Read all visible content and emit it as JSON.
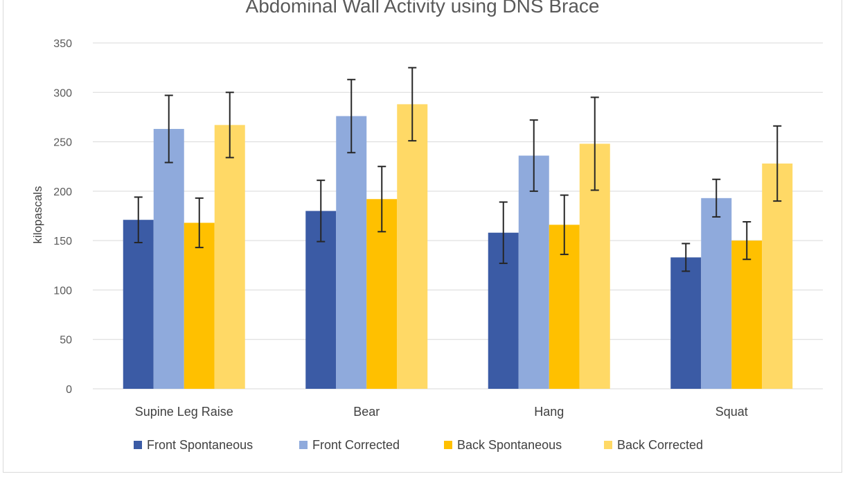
{
  "chart_data": {
    "type": "bar",
    "title": "Abdominal Wall Activity using DNS Brace",
    "xlabel": "",
    "ylabel": "kilopascals",
    "ylim": [
      0,
      350
    ],
    "yticks": [
      0,
      50,
      100,
      150,
      200,
      250,
      300,
      350
    ],
    "grid": true,
    "legend_position": "bottom",
    "categories": [
      "Supine Leg Raise",
      "Bear",
      "Hang",
      "Squat"
    ],
    "series": [
      {
        "name": "Front Spontaneous",
        "color": "#3B5BA5",
        "values": [
          171,
          180,
          158,
          133
        ],
        "errors": [
          23,
          31,
          31,
          14
        ]
      },
      {
        "name": "Front Corrected",
        "color": "#8FAADC",
        "values": [
          263,
          276,
          236,
          193
        ],
        "errors": [
          34,
          37,
          36,
          19
        ]
      },
      {
        "name": "Back Spontaneous",
        "color": "#FFC000",
        "values": [
          168,
          192,
          166,
          150
        ],
        "errors": [
          25,
          33,
          30,
          19
        ]
      },
      {
        "name": "Back Corrected",
        "color": "#FFD966",
        "values": [
          267,
          288,
          248,
          228
        ],
        "errors": [
          33,
          37,
          47,
          38
        ]
      }
    ]
  }
}
